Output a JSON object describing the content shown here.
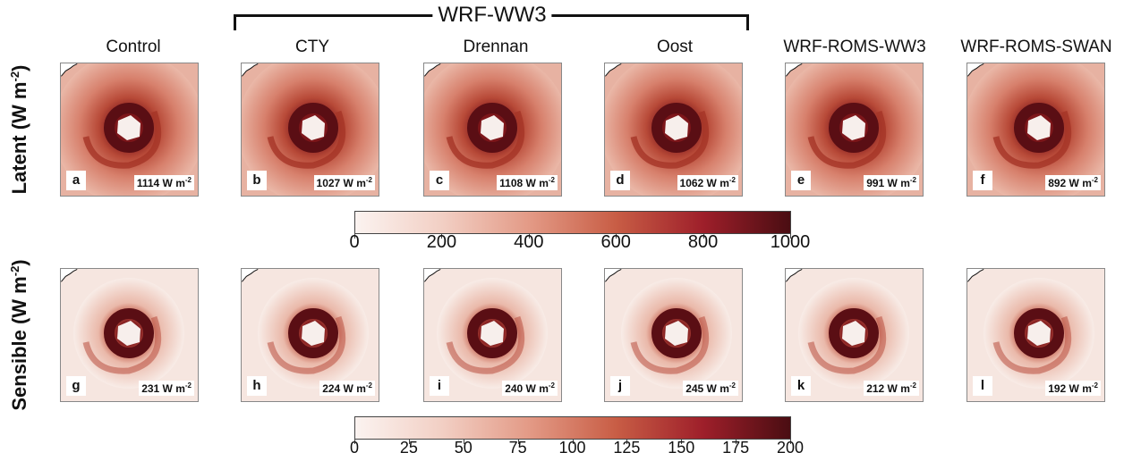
{
  "header": {
    "group_label": "WRF-WW3",
    "columns": [
      "Control",
      "CTY",
      "Drennan",
      "Oost",
      "WRF-ROMS-WW3",
      "WRF-ROMS-SWAN"
    ]
  },
  "rows": [
    {
      "label": "Latent (W m",
      "label_sup": "-2",
      "label_end": ")",
      "panels": [
        {
          "letter": "a",
          "value": "1114 W m",
          "sup": "-2"
        },
        {
          "letter": "b",
          "value": "1027 W m",
          "sup": "-2"
        },
        {
          "letter": "c",
          "value": "1108 W m",
          "sup": "-2"
        },
        {
          "letter": "d",
          "value": "1062 W m",
          "sup": "-2"
        },
        {
          "letter": "e",
          "value": "991 W m",
          "sup": "-2"
        },
        {
          "letter": "f",
          "value": "892 W m",
          "sup": "-2"
        }
      ]
    },
    {
      "label": "Sensible (W m",
      "label_sup": "-2",
      "label_end": ")",
      "panels": [
        {
          "letter": "g",
          "value": "231 W m",
          "sup": "-2"
        },
        {
          "letter": "h",
          "value": "224 W m",
          "sup": "-2"
        },
        {
          "letter": "i",
          "value": "240 W m",
          "sup": "-2"
        },
        {
          "letter": "j",
          "value": "245 W m",
          "sup": "-2"
        },
        {
          "letter": "k",
          "value": "212 W m",
          "sup": "-2"
        },
        {
          "letter": "l",
          "value": "192 W m",
          "sup": "-2"
        }
      ]
    }
  ],
  "colorbars": [
    {
      "ticks": [
        "0",
        "200",
        "400",
        "600",
        "800",
        "1000"
      ],
      "min": 0,
      "max": 1000
    },
    {
      "ticks": [
        "0",
        "25",
        "50",
        "75",
        "100",
        "125",
        "150",
        "175",
        "200"
      ],
      "min": 0,
      "max": 200
    }
  ],
  "colors": {
    "low": "#fbf3f0",
    "mid": "#c85d45",
    "high": "#4a0d12",
    "eye": "#f7efec"
  }
}
